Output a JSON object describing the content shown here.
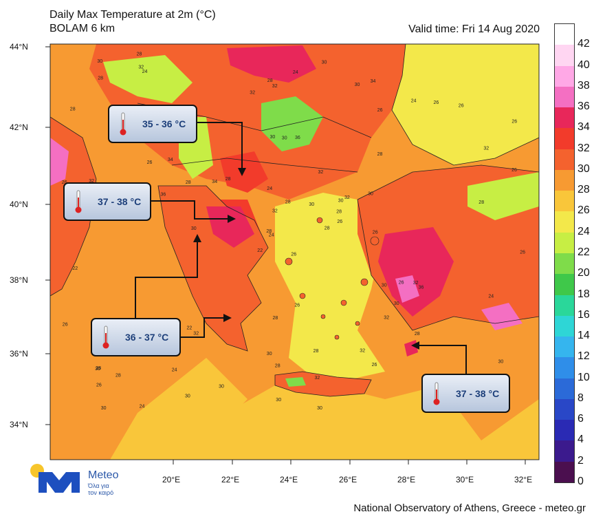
{
  "header": {
    "title_line1": "Daily Max Temperature at 2m (°C)",
    "title_line2": "BOLAM 6 km",
    "valid_time": "Valid time: Fri 14 Aug 2020"
  },
  "footer": {
    "credit": "National Observatory of Athens, Greece - meteo.gr",
    "logo_name": "Meteo",
    "logo_tagline_1": "Όλα για",
    "logo_tagline_2": "τον καιρό"
  },
  "axes": {
    "lat_labels": [
      "44°N",
      "42°N",
      "40°N",
      "38°N",
      "36°N",
      "34°N"
    ],
    "lon_labels": [
      "20°E",
      "22°E",
      "24°E",
      "26°E",
      "28°E",
      "30°E",
      "32°E"
    ]
  },
  "colorbar": {
    "labels": [
      "42",
      "40",
      "38",
      "36",
      "34",
      "32",
      "30",
      "28",
      "26",
      "24",
      "22",
      "20",
      "18",
      "16",
      "14",
      "12",
      "10",
      "8",
      "6",
      "4",
      "2",
      "0"
    ],
    "colors": [
      "#ffffff",
      "#ffd6f2",
      "#ffa8e6",
      "#f46fc2",
      "#e8275a",
      "#f23b2b",
      "#f4622e",
      "#f79a32",
      "#f9c63a",
      "#f3e84a",
      "#c7ee44",
      "#7fdc4a",
      "#3fc84a",
      "#2ad79a",
      "#2ed6d6",
      "#35b5ee",
      "#2f8ee9",
      "#2b6ad8",
      "#2947c7",
      "#2a2ab4",
      "#3b1a8d",
      "#4b0f4f"
    ]
  },
  "callouts": [
    {
      "label": "35 - 36 °C"
    },
    {
      "label": "37 - 38 °C"
    },
    {
      "label": "36 - 37 °C"
    },
    {
      "label": "37 - 38 °C"
    }
  ],
  "map_labels": [
    "26",
    "22",
    "24",
    "28",
    "30",
    "32",
    "34",
    "36",
    "26",
    "28",
    "24",
    "30",
    "32",
    "26",
    "22",
    "28",
    "24",
    "30",
    "32",
    "30",
    "28",
    "26",
    "24",
    "30",
    "32",
    "36",
    "34",
    "32",
    "28",
    "30",
    "26",
    "28",
    "30",
    "32",
    "26",
    "24",
    "22",
    "28",
    "30",
    "32",
    "30",
    "34",
    "36",
    "32",
    "30",
    "26",
    "28",
    "30",
    "28",
    "26",
    "30",
    "32",
    "28",
    "30",
    "26",
    "28",
    "32",
    "30",
    "28",
    "26",
    "24",
    "30",
    "32",
    "34",
    "26",
    "28",
    "30",
    "32",
    "28",
    "26",
    "28",
    "30",
    "26",
    "28",
    "30",
    "28",
    "26",
    "22",
    "24",
    "32",
    "30",
    "28",
    "26",
    "24",
    "30",
    "28",
    "26",
    "28",
    "30",
    "32",
    "28",
    "26",
    "30",
    "28"
  ]
}
